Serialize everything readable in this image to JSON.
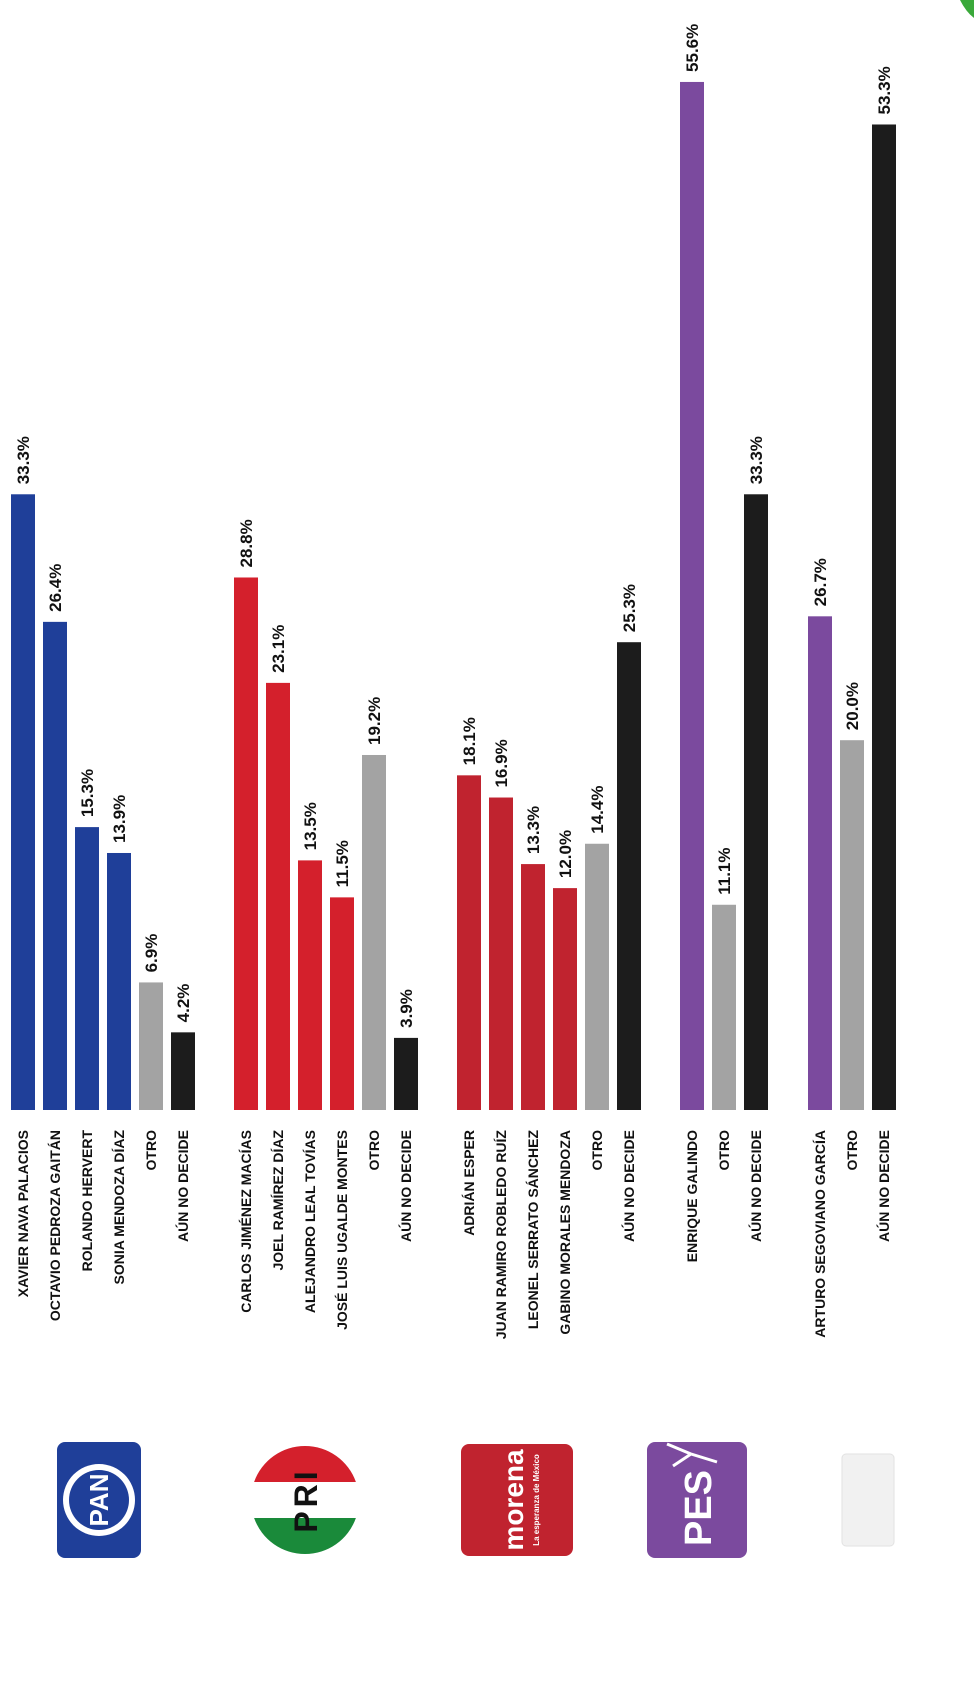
{
  "chart_data": {
    "type": "bar",
    "orientation": "vertical",
    "value_unit": "%",
    "colors": {
      "pan": "#1f3f99",
      "pri": "#d4202c",
      "morena": "#c0232f",
      "pes": "#7b4a9e",
      "last": "#7b4a9e",
      "otro": "#a3a3a3",
      "no_decide": "#1c1c1c"
    },
    "groups": [
      {
        "party": "PAN",
        "logo_icon": "pan-logo-icon",
        "logo_text": "PAN",
        "categories": [
          "XAVIER NAVA PALACIOS",
          "OCTAVIO PEDROZA GAITÁN",
          "ROLANDO HERVERT",
          "SONIA MENDOZA DÍAZ",
          "OTRO",
          "AÚN NO DECIDE"
        ],
        "values": [
          33.3,
          26.4,
          15.3,
          13.9,
          6.9,
          4.2
        ],
        "labels": [
          "33.3%",
          "26.4%",
          "15.3%",
          "13.9%",
          "6.9%",
          "4.2%"
        ],
        "kinds": [
          "pan",
          "pan",
          "pan",
          "pan",
          "otro",
          "no_decide"
        ]
      },
      {
        "party": "PRI",
        "logo_icon": "pri-logo-icon",
        "logo_text": "PRI",
        "categories": [
          "CARLOS JIMÉNEZ MACÍAS",
          "JOEL RAMÍREZ DÍAZ",
          "ALEJANDRO LEAL TOVÍAS",
          "JOSÉ LUIS UGALDE MONTES",
          "OTRO",
          "AÚN NO DECIDE"
        ],
        "values": [
          28.8,
          23.1,
          13.5,
          11.5,
          19.2,
          3.9
        ],
        "labels": [
          "28.8%",
          "23.1%",
          "13.5%",
          "11.5%",
          "19.2%",
          "3.9%"
        ],
        "kinds": [
          "pri",
          "pri",
          "pri",
          "pri",
          "otro",
          "no_decide"
        ]
      },
      {
        "party": "MORENA",
        "logo_icon": "morena-logo-icon",
        "logo_text": "morena",
        "logo_subtext": "La esperanza de México",
        "categories": [
          "ADRIÁN ESPER",
          "JUAN RAMIRO ROBLEDO RUÍZ",
          "LEONEL SERRATO SÁNCHEZ",
          "GABINO MORALES MENDOZA",
          "OTRO",
          "AÚN NO DECIDE"
        ],
        "values": [
          18.1,
          16.9,
          13.3,
          12.0,
          14.4,
          25.3
        ],
        "labels": [
          "18.1%",
          "16.9%",
          "13.3%",
          "12.0%",
          "14.4%",
          "25.3%"
        ],
        "kinds": [
          "morena",
          "morena",
          "morena",
          "morena",
          "otro",
          "no_decide"
        ]
      },
      {
        "party": "PES",
        "logo_icon": "pes-logo-icon",
        "logo_text": "PES",
        "categories": [
          "ENRIQUE GALINDO",
          "OTRO",
          "AÚN NO DECIDE"
        ],
        "values": [
          55.6,
          11.1,
          33.3
        ],
        "labels": [
          "55.6%",
          "11.1%",
          "33.3%"
        ],
        "kinds": [
          "pes",
          "otro",
          "no_decide"
        ]
      },
      {
        "party": "",
        "logo_icon": "party-logo-icon",
        "logo_text": "",
        "categories": [
          "ARTURO SEGOVIANO GARCÍA",
          "OTRO",
          "AÚN NO DECIDE"
        ],
        "values": [
          26.7,
          20.0,
          53.3
        ],
        "labels": [
          "26.7%",
          "20.0%",
          "53.3%"
        ],
        "kinds": [
          "last",
          "otro",
          "no_decide"
        ]
      }
    ],
    "title": "",
    "xlabel": "",
    "ylabel": "",
    "grid": false,
    "legend": "none"
  }
}
